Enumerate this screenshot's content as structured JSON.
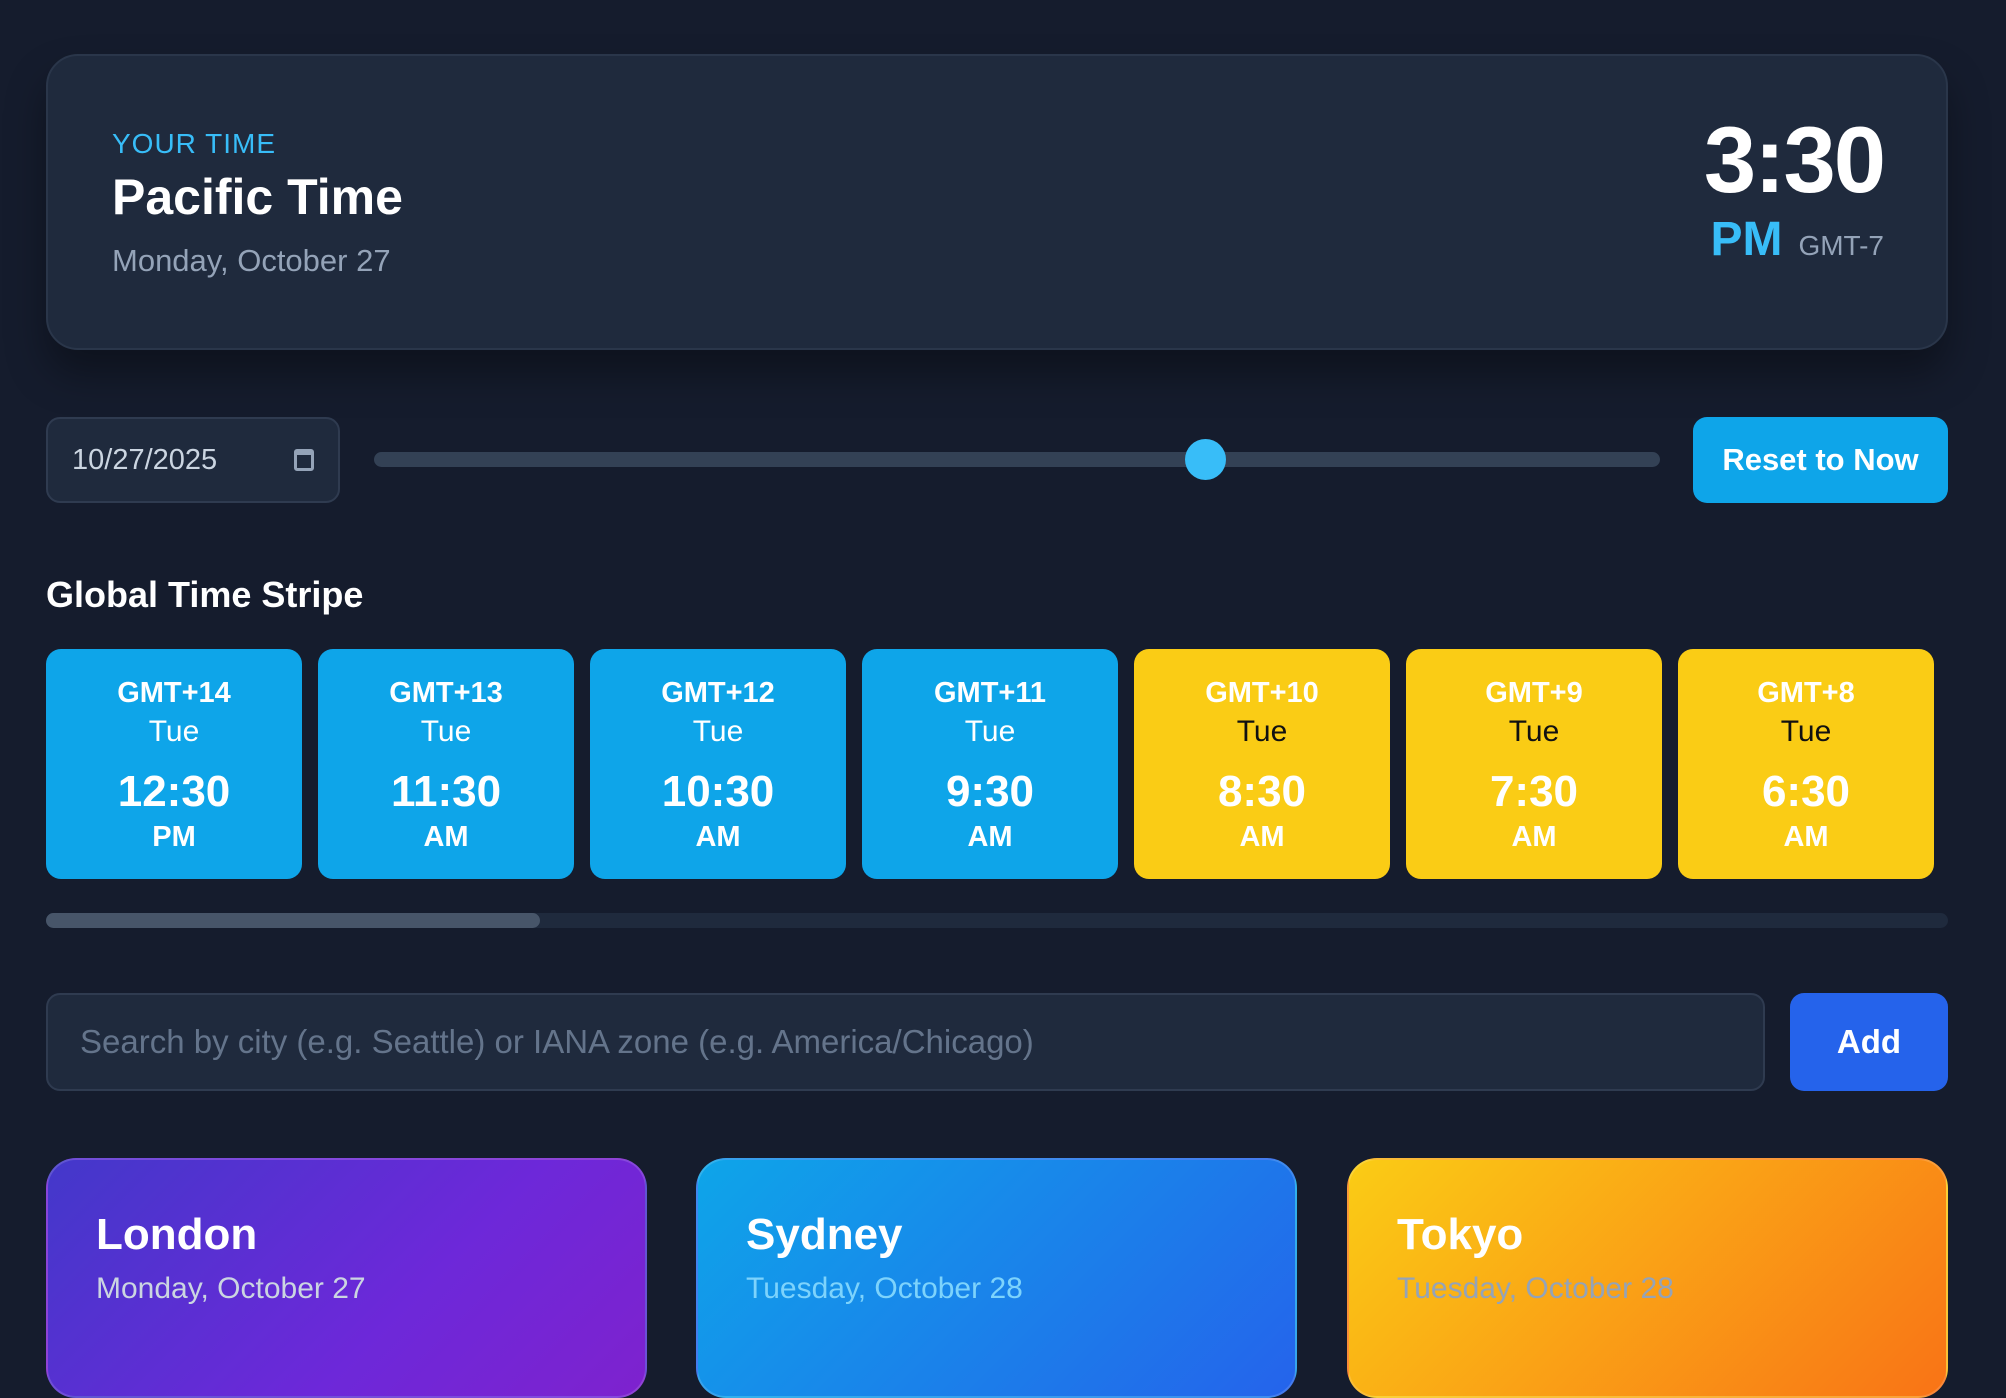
{
  "header": {
    "label": "YOUR TIME",
    "zone": "Pacific Time",
    "date": "Monday, October 27",
    "time": "3:30",
    "ampm": "PM",
    "offset": "GMT-7"
  },
  "controls": {
    "date_value": "10/27/2025",
    "calendar_icon": "calendar-icon",
    "slider_minutes": 930,
    "slider_max_minutes": 1440,
    "reset_label": "Reset to Now"
  },
  "stripe": {
    "title": "Global Time Stripe",
    "tiles": [
      {
        "offset": "GMT+14",
        "day": "Tue",
        "time": "12:30",
        "ampm": "PM",
        "kind": "day"
      },
      {
        "offset": "GMT+13",
        "day": "Tue",
        "time": "11:30",
        "ampm": "AM",
        "kind": "day"
      },
      {
        "offset": "GMT+12",
        "day": "Tue",
        "time": "10:30",
        "ampm": "AM",
        "kind": "day"
      },
      {
        "offset": "GMT+11",
        "day": "Tue",
        "time": "9:30",
        "ampm": "AM",
        "kind": "day"
      },
      {
        "offset": "GMT+10",
        "day": "Tue",
        "time": "8:30",
        "ampm": "AM",
        "kind": "eve"
      },
      {
        "offset": "GMT+9",
        "day": "Tue",
        "time": "7:30",
        "ampm": "AM",
        "kind": "eve"
      },
      {
        "offset": "GMT+8",
        "day": "Tue",
        "time": "6:30",
        "ampm": "AM",
        "kind": "eve"
      }
    ]
  },
  "search": {
    "placeholder": "Search by city (e.g. Seattle) or IANA zone (e.g. America/Chicago)",
    "value": "",
    "add_label": "Add"
  },
  "cities": [
    {
      "name": "London",
      "date": "Monday, October 27"
    },
    {
      "name": "Sydney",
      "date": "Tuesday, October 28"
    },
    {
      "name": "Tokyo",
      "date": "Tuesday, October 28"
    }
  ],
  "colors": {
    "background": "#151c2d",
    "accent": "#38bdf8",
    "day_tile": "#0ea5e9",
    "morning_tile": "#facc15",
    "add_button": "#2563eb"
  }
}
